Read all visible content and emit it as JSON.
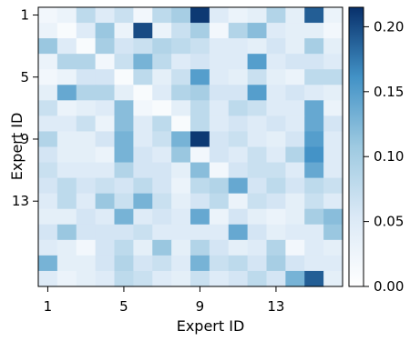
{
  "chart_data": {
    "type": "heatmap",
    "title": "",
    "xlabel": "Expert ID",
    "ylabel": "Expert ID",
    "x_ticks": [
      "1",
      "5",
      "9",
      "13"
    ],
    "y_ticks": [
      "1",
      "5",
      "9",
      "13"
    ],
    "colorbar": {
      "ticks": [
        "0.00",
        "0.05",
        "0.10",
        "0.15",
        "0.20"
      ],
      "range": [
        0,
        0.215
      ],
      "colormap": [
        "#ffffff",
        "#dbe9f6",
        "#9ecae1",
        "#4292c6",
        "#08306b"
      ]
    },
    "matrix": [
      [
        0.02,
        0.03,
        0.08,
        0.05,
        0.07,
        0.02,
        0.08,
        0.1,
        0.21,
        0.05,
        0.03,
        0.04,
        0.09,
        0.04,
        0.19,
        0.03
      ],
      [
        0.03,
        0.01,
        0.05,
        0.11,
        0.03,
        0.2,
        0.03,
        0.07,
        0.1,
        0.02,
        0.09,
        0.12,
        0.05,
        0.04,
        0.04,
        0.02
      ],
      [
        0.11,
        0.05,
        0.01,
        0.1,
        0.06,
        0.07,
        0.09,
        0.08,
        0.07,
        0.05,
        0.05,
        0.04,
        0.06,
        0.04,
        0.1,
        0.04
      ],
      [
        0.03,
        0.09,
        0.09,
        0.02,
        0.07,
        0.13,
        0.08,
        0.05,
        0.06,
        0.05,
        0.05,
        0.15,
        0.05,
        0.06,
        0.06,
        0.05
      ],
      [
        0.02,
        0.03,
        0.06,
        0.06,
        0.01,
        0.08,
        0.04,
        0.07,
        0.15,
        0.05,
        0.04,
        0.07,
        0.04,
        0.03,
        0.08,
        0.08
      ],
      [
        0.04,
        0.14,
        0.09,
        0.09,
        0.04,
        0.01,
        0.05,
        0.09,
        0.1,
        0.06,
        0.06,
        0.15,
        0.05,
        0.06,
        0.05,
        0.04
      ],
      [
        0.07,
        0.03,
        0.04,
        0.05,
        0.12,
        0.02,
        0.01,
        0.04,
        0.08,
        0.05,
        0.08,
        0.07,
        0.05,
        0.05,
        0.14,
        0.03
      ],
      [
        0.05,
        0.05,
        0.07,
        0.03,
        0.12,
        0.05,
        0.08,
        0.01,
        0.08,
        0.05,
        0.06,
        0.05,
        0.06,
        0.05,
        0.14,
        0.06
      ],
      [
        0.09,
        0.04,
        0.04,
        0.06,
        0.13,
        0.05,
        0.07,
        0.13,
        0.21,
        0.06,
        0.07,
        0.05,
        0.04,
        0.06,
        0.15,
        0.05
      ],
      [
        0.06,
        0.04,
        0.04,
        0.03,
        0.13,
        0.06,
        0.05,
        0.11,
        0.02,
        0.06,
        0.05,
        0.07,
        0.05,
        0.09,
        0.16,
        0.05
      ],
      [
        0.07,
        0.05,
        0.05,
        0.05,
        0.09,
        0.06,
        0.06,
        0.04,
        0.12,
        0.02,
        0.06,
        0.07,
        0.07,
        0.05,
        0.14,
        0.05
      ],
      [
        0.06,
        0.08,
        0.06,
        0.07,
        0.06,
        0.08,
        0.06,
        0.03,
        0.08,
        0.09,
        0.14,
        0.06,
        0.08,
        0.06,
        0.08,
        0.07
      ],
      [
        0.05,
        0.08,
        0.05,
        0.11,
        0.07,
        0.13,
        0.07,
        0.04,
        0.06,
        0.08,
        0.03,
        0.07,
        0.06,
        0.04,
        0.07,
        0.05
      ],
      [
        0.04,
        0.04,
        0.06,
        0.05,
        0.13,
        0.05,
        0.06,
        0.05,
        0.14,
        0.03,
        0.06,
        0.04,
        0.03,
        0.04,
        0.1,
        0.12
      ],
      [
        0.06,
        0.11,
        0.06,
        0.06,
        0.06,
        0.07,
        0.05,
        0.05,
        0.05,
        0.05,
        0.14,
        0.06,
        0.04,
        0.05,
        0.05,
        0.11
      ],
      [
        0.05,
        0.04,
        0.02,
        0.06,
        0.08,
        0.04,
        0.11,
        0.04,
        0.09,
        0.06,
        0.04,
        0.05,
        0.09,
        0.02,
        0.05,
        0.04
      ],
      [
        0.13,
        0.04,
        0.04,
        0.06,
        0.09,
        0.06,
        0.07,
        0.05,
        0.13,
        0.07,
        0.08,
        0.06,
        0.1,
        0.06,
        0.05,
        0.05
      ],
      [
        0.05,
        0.03,
        0.04,
        0.05,
        0.08,
        0.07,
        0.05,
        0.04,
        0.07,
        0.05,
        0.06,
        0.08,
        0.06,
        0.13,
        0.19,
        0.04
      ]
    ]
  }
}
